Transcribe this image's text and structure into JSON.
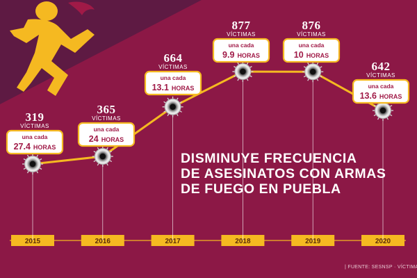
{
  "headline": [
    "DISMINUYE FRECUENCIA",
    "DE ASESINATOS CON ARMAS",
    "DE FUEGO EN PUEBLA"
  ],
  "source": "| FUENTE: SESNSP · VÍCTIMAS",
  "colors": {
    "background": "#8c1846",
    "banner": "#5e1a43",
    "line": "#f5b921",
    "year_box": "#f5b921",
    "callout_text": "#a01a47",
    "callout_border": "#f5b921"
  },
  "icons": [
    "running-man-icon",
    "bullet-hole-icon"
  ],
  "chart_data": {
    "type": "line",
    "x": [
      "2015",
      "2016",
      "2017",
      "2018",
      "2019",
      "2020"
    ],
    "series": [
      {
        "values": [
          319,
          365,
          664,
          877,
          876,
          642
        ]
      }
    ],
    "value_unit": "VÍCTIMAS",
    "frequency": {
      "prefix": "una cada",
      "values": [
        "27.4",
        "24",
        "13.1",
        "9.9",
        "10",
        "13.6"
      ],
      "unit": "HORAS"
    },
    "grid": false,
    "legend": "none"
  }
}
